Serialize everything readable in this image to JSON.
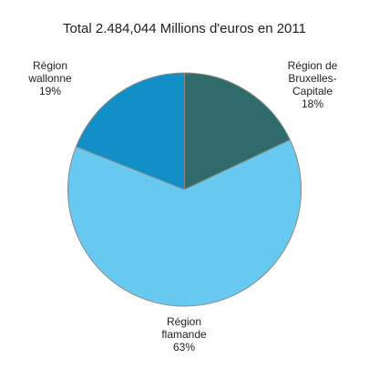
{
  "chart_data": {
    "type": "pie",
    "title": "Total 2.484,044 Millions d'euros en 2011",
    "slices": [
      {
        "label": [
          "Région de",
          "Bruxelles-",
          "Capitale",
          "18%"
        ],
        "category": "Région de Bruxelles-Capitale",
        "value": 18,
        "color": "#2f6b6b"
      },
      {
        "label": [
          "Région",
          "flamande",
          "63%"
        ],
        "category": "Région flamande",
        "value": 63,
        "color": "#67c9ef"
      },
      {
        "label": [
          "Région",
          "wallonne",
          "19%"
        ],
        "category": "Région wallonne",
        "value": 19,
        "color": "#118fc6"
      }
    ],
    "start_angle_deg": 0,
    "direction": "clockwise",
    "legend": "none"
  }
}
